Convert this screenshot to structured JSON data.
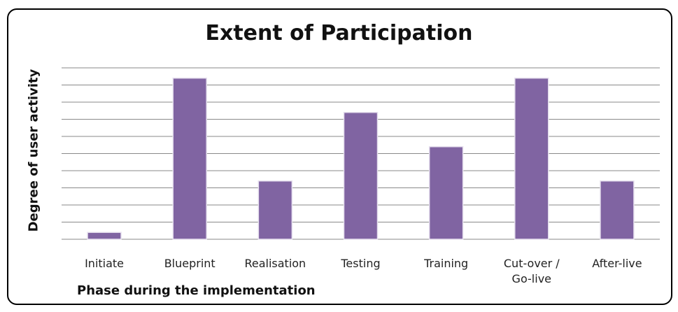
{
  "chart_data": {
    "type": "bar",
    "title": "Extent of Participation",
    "x_label": "Phase during the implementation",
    "y_label": "Degree of user activity",
    "categories": [
      "Initiate",
      "Blueprint",
      "Realisation",
      "Testing",
      "Training",
      "Cut-over / Go-live",
      "After-live"
    ],
    "values": [
      0.4,
      9.4,
      3.4,
      7.4,
      5.4,
      9.4,
      3.4
    ],
    "color": "#8064a2",
    "ylim": [
      0,
      10
    ],
    "yticks": [
      0,
      1,
      2,
      3,
      4,
      5,
      6,
      7,
      8,
      9,
      10
    ],
    "grid": true
  }
}
